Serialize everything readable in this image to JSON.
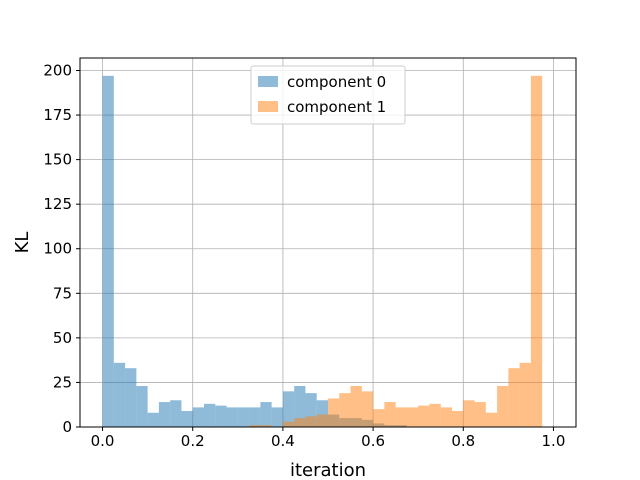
{
  "chart_data": {
    "type": "bar",
    "title": "",
    "xlabel": "iteration",
    "ylabel": "KL",
    "xlim": [
      -0.05,
      1.05
    ],
    "ylim": [
      0,
      207
    ],
    "bin_width": 0.025,
    "xticks": [
      0.0,
      0.2,
      0.4,
      0.6,
      0.8,
      1.0
    ],
    "xtick_labels": [
      "0.0",
      "0.2",
      "0.4",
      "0.6",
      "0.8",
      "1.0"
    ],
    "yticks": [
      0,
      25,
      50,
      75,
      100,
      125,
      150,
      175,
      200
    ],
    "ytick_labels": [
      "0",
      "25",
      "50",
      "75",
      "100",
      "125",
      "150",
      "175",
      "200"
    ],
    "grid": true,
    "legend_position": "top-center",
    "series": [
      {
        "name": "component 0",
        "color": "#1f77b4",
        "opacity": 0.5,
        "bin_starts": [
          0.0,
          0.025,
          0.05,
          0.075,
          0.1,
          0.125,
          0.15,
          0.175,
          0.2,
          0.225,
          0.25,
          0.275,
          0.3,
          0.325,
          0.35,
          0.375,
          0.4,
          0.425,
          0.45,
          0.475,
          0.5,
          0.525,
          0.55,
          0.575,
          0.6,
          0.625,
          0.65
        ],
        "values": [
          197,
          36,
          33,
          23,
          8,
          14,
          15,
          9,
          11,
          13,
          12,
          11,
          11,
          11,
          14,
          11,
          20,
          23,
          19,
          15,
          7,
          5,
          5,
          4,
          2,
          1,
          1
        ]
      },
      {
        "name": "component 1",
        "color": "#ff7f0e",
        "opacity": 0.5,
        "bin_starts": [
          0.325,
          0.35,
          0.375,
          0.4,
          0.425,
          0.45,
          0.475,
          0.5,
          0.525,
          0.55,
          0.575,
          0.6,
          0.625,
          0.65,
          0.675,
          0.7,
          0.725,
          0.75,
          0.775,
          0.8,
          0.825,
          0.85,
          0.875,
          0.9,
          0.925,
          0.95,
          0.975
        ],
        "values": [
          1,
          1,
          0,
          3,
          5,
          6,
          7,
          16,
          19,
          23,
          20,
          10,
          14,
          11,
          11,
          12,
          13,
          11,
          9,
          15,
          14,
          8,
          23,
          33,
          36,
          197,
          0
        ]
      }
    ]
  }
}
